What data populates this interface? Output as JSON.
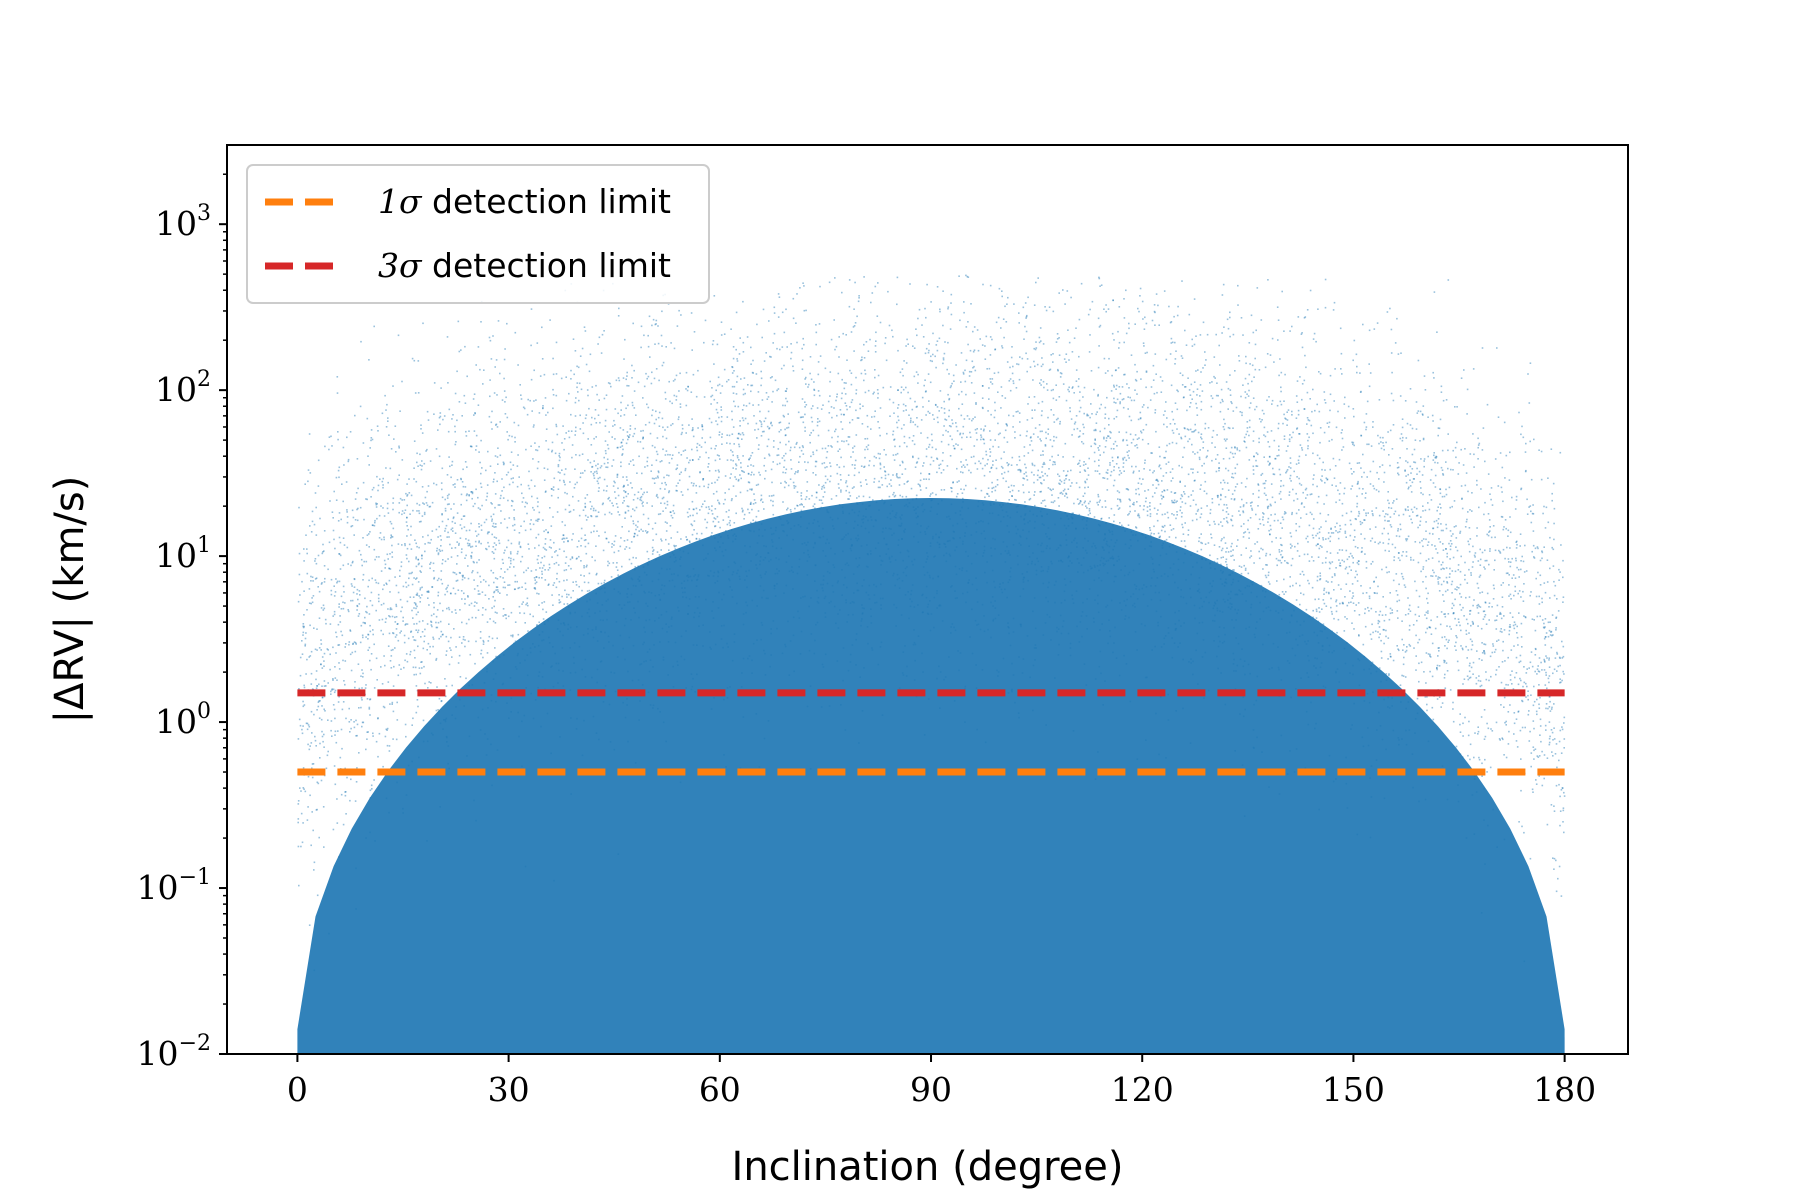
{
  "chart_data": {
    "type": "scatter",
    "xlabel": "Inclination (degree)",
    "ylabel": "|ΔRV| (km/s)",
    "xlim": [
      -10,
      189
    ],
    "ylim": [
      0.01,
      3000
    ],
    "yscale": "log",
    "x_ticks": [
      0,
      30,
      60,
      90,
      120,
      150,
      180
    ],
    "y_ticks": [
      {
        "value": 0.01,
        "base": "10",
        "exp": "−2"
      },
      {
        "value": 0.1,
        "base": "10",
        "exp": "−1"
      },
      {
        "value": 1,
        "base": "10",
        "exp": "0"
      },
      {
        "value": 10,
        "base": "10",
        "exp": "1"
      },
      {
        "value": 100,
        "base": "10",
        "exp": "2"
      },
      {
        "value": 1000,
        "base": "10",
        "exp": "3"
      }
    ],
    "scatter": {
      "color": "#1f77b4",
      "x_range": [
        0,
        180
      ],
      "y_range": [
        0.01,
        500
      ],
      "description": "dense cloud of simulated points, densest around y≈1–20 km/s near 90°"
    },
    "lines": [
      {
        "name": "1σ detection limit",
        "num": "1",
        "sym": "σ",
        "text": " detection limit",
        "y": 0.5,
        "x": [
          0,
          180
        ],
        "color": "#ff7f0e",
        "style": "dashed"
      },
      {
        "name": "3σ detection limit",
        "num": "3",
        "sym": "σ",
        "text": " detection limit",
        "y": 1.5,
        "x": [
          0,
          180
        ],
        "color": "#d62728",
        "style": "dashed"
      }
    ],
    "legend": {
      "position": "upper-left"
    },
    "grid": false
  }
}
